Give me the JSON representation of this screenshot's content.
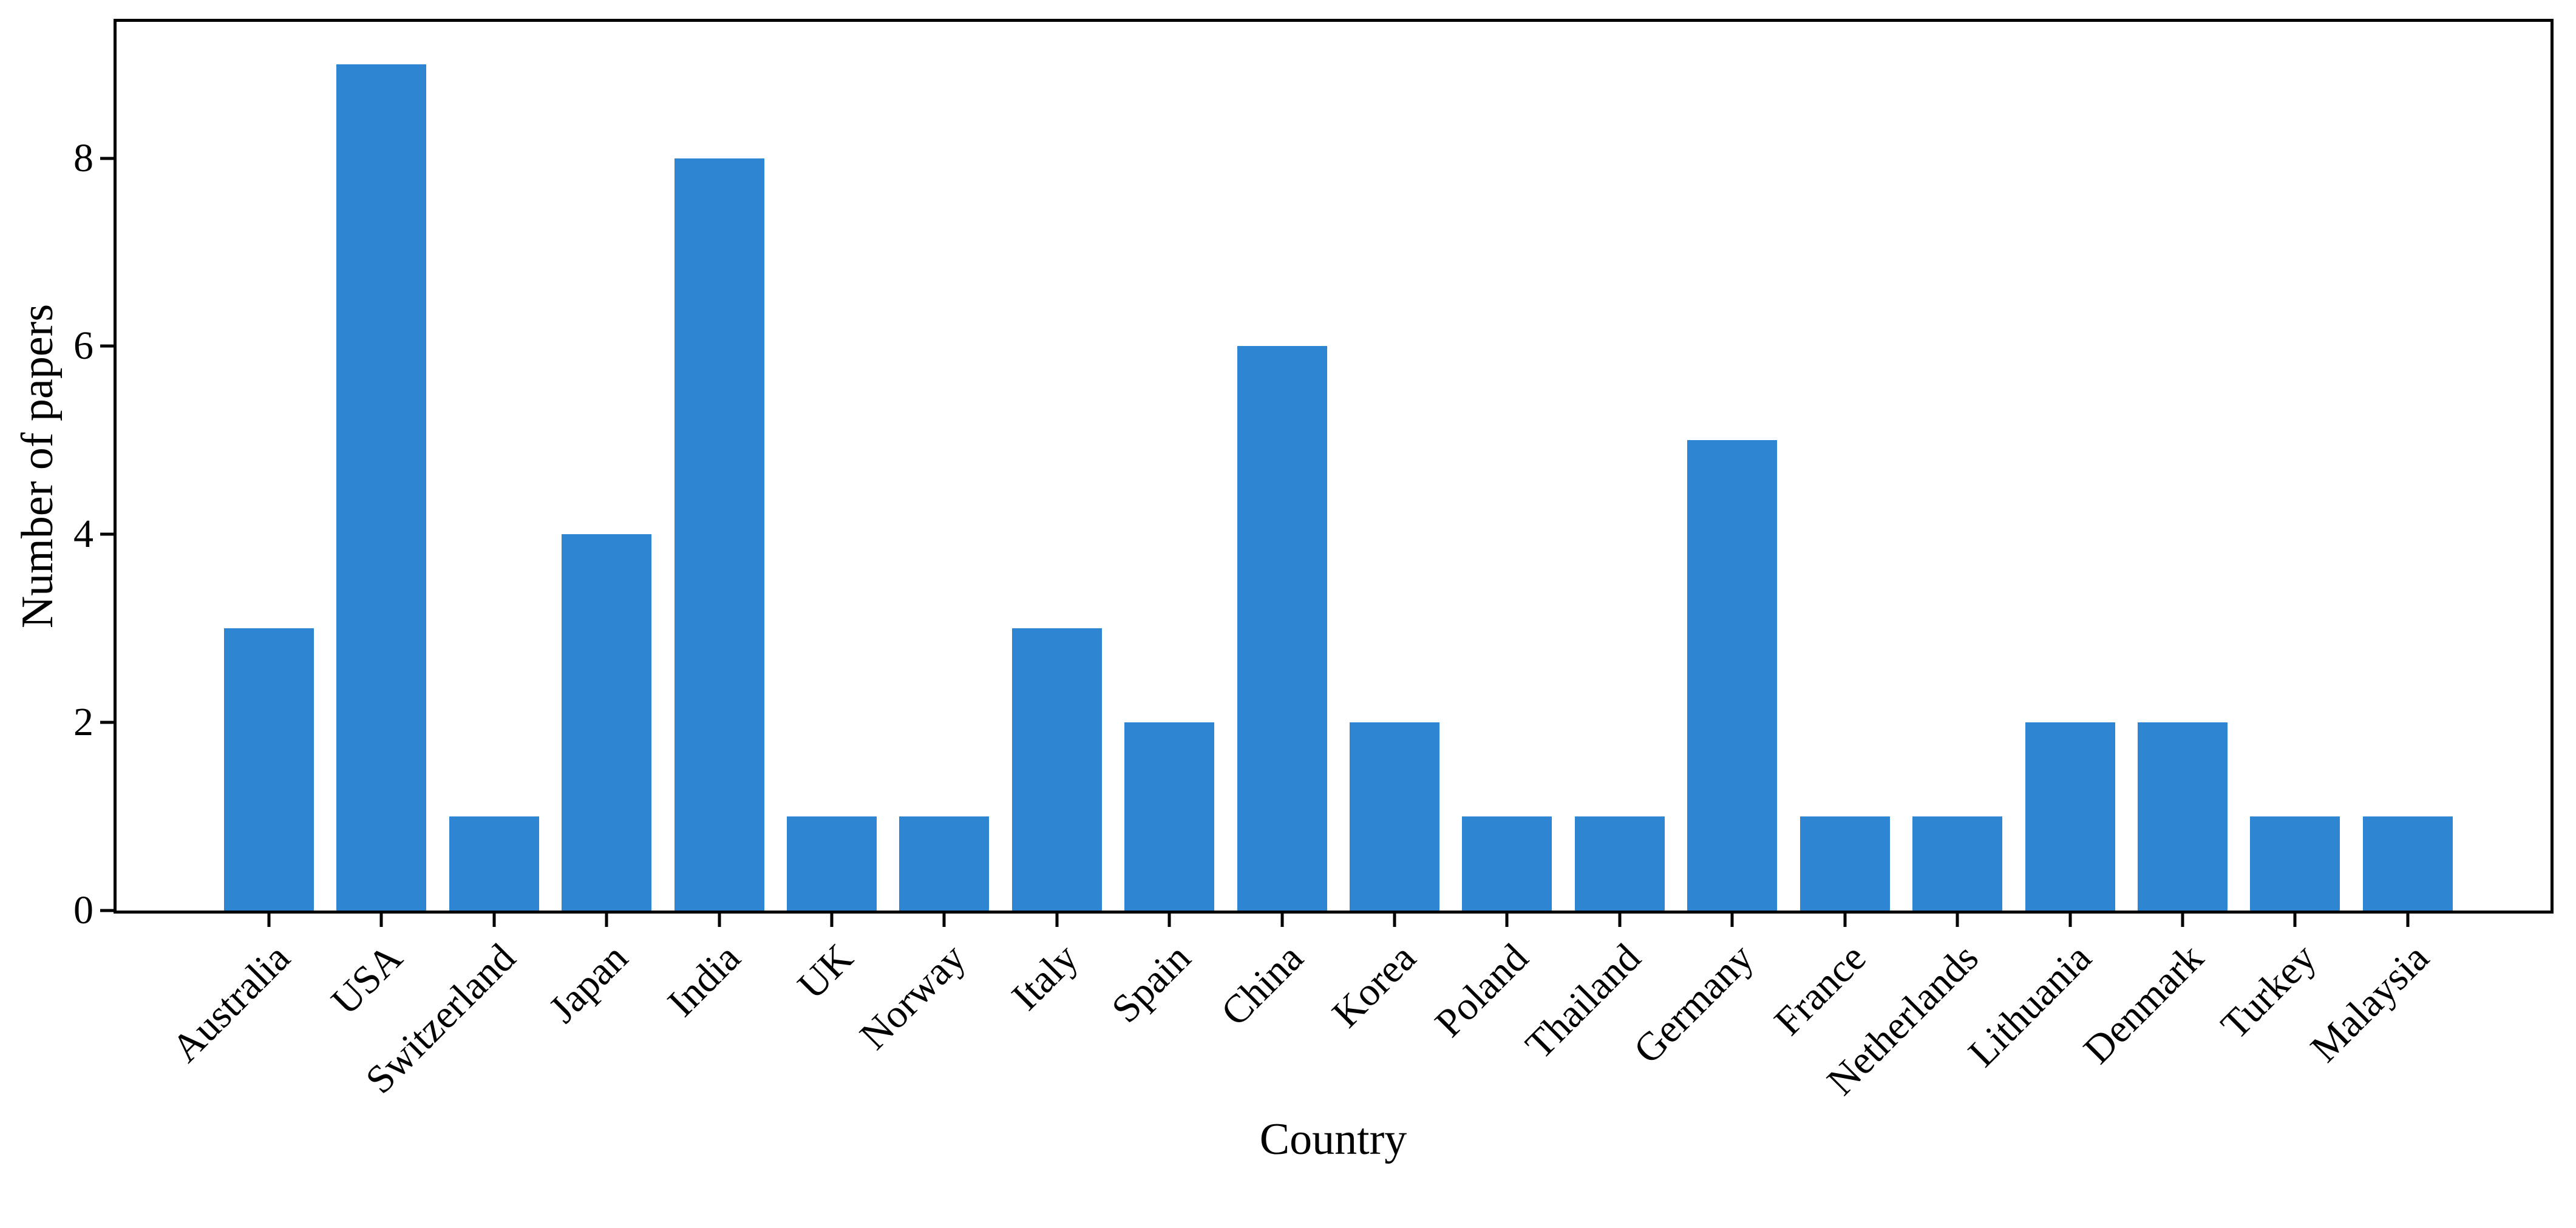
{
  "chart_data": {
    "type": "bar",
    "title": "",
    "xlabel": "Country",
    "ylabel": "Number of papers",
    "categories": [
      "Australia",
      "USA",
      "Switzerland",
      "Japan",
      "India",
      "UK",
      "Norway",
      "Italy",
      "Spain",
      "China",
      "Korea",
      "Poland",
      "Thailand",
      "Germany",
      "France",
      "Netherlands",
      "Lithuania",
      "Denmark",
      "Turkey",
      "Malaysia"
    ],
    "values": [
      3,
      9,
      1,
      4,
      8,
      1,
      1,
      3,
      2,
      6,
      2,
      1,
      1,
      5,
      1,
      1,
      2,
      2,
      1,
      1
    ],
    "yticks": [
      0,
      2,
      4,
      6,
      8
    ],
    "ylim": [
      0,
      9.45
    ],
    "bar_color": "#2E86D3",
    "axis_color": "#000000",
    "background_color": "#ffffff",
    "grid": false,
    "legend": null,
    "x_tick_rotation_deg": 45
  }
}
